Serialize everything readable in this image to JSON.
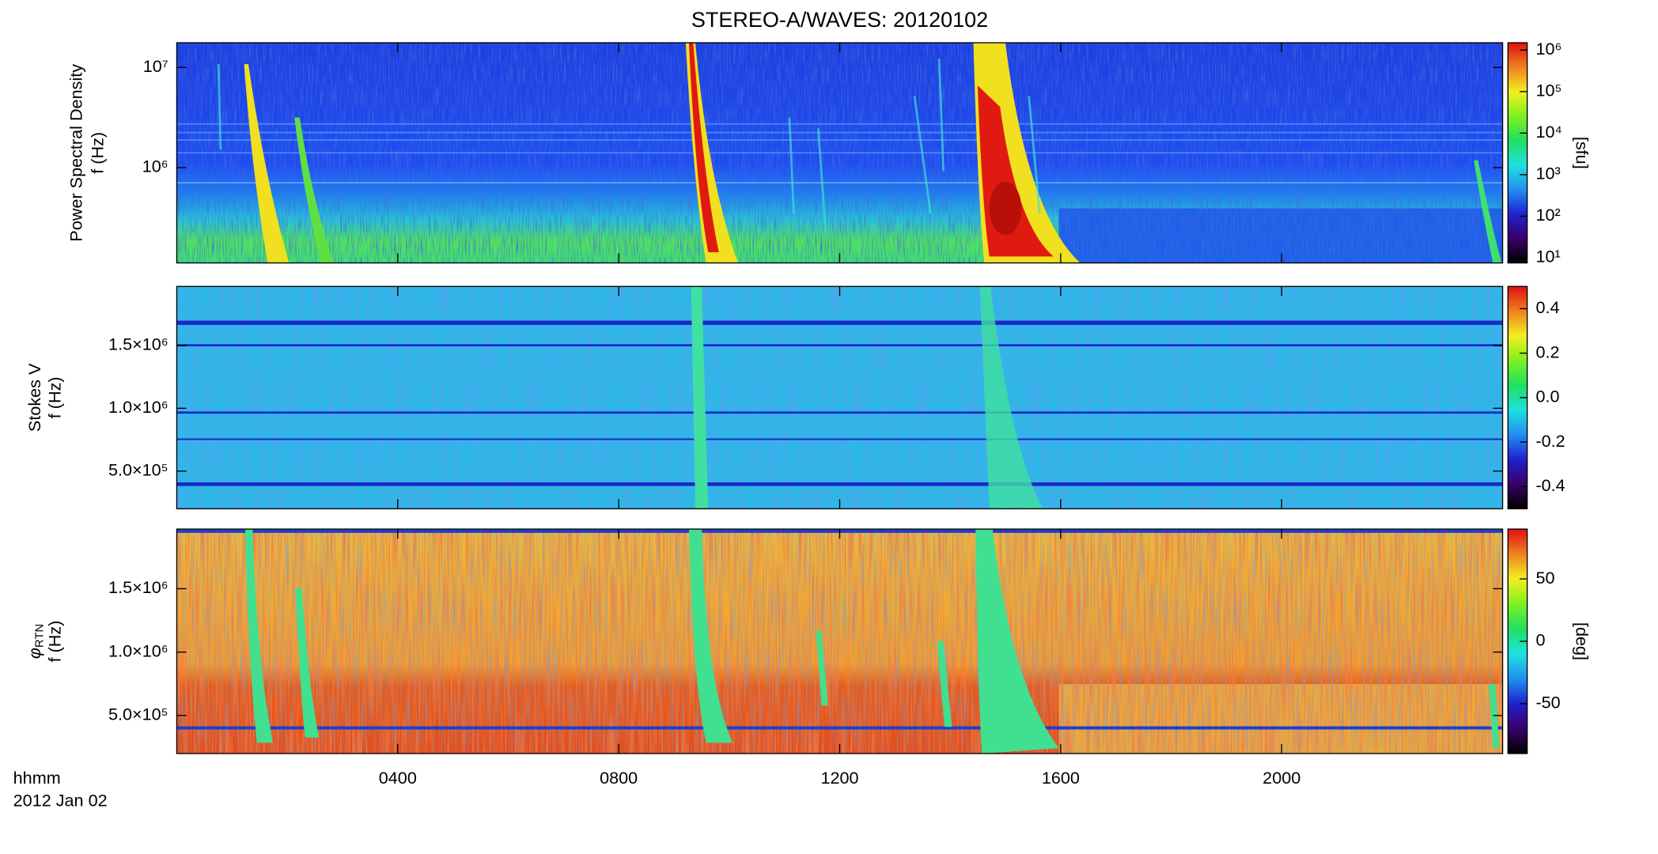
{
  "chart_data": [
    {
      "type": "heatmap",
      "title": "STEREO-A/WAVES: 20120102",
      "ylabel": "Power Spectral Density",
      "ylabel2": "f (Hz)",
      "log_y": true,
      "ylim": [
        112000,
        17600000
      ],
      "yticks": [
        {
          "value": 1000000,
          "label": "10⁶"
        },
        {
          "value": 10000000,
          "label": "10⁷"
        }
      ],
      "colorbar": {
        "label": "[sfu]",
        "log": true,
        "lim": [
          7.5,
          1500000
        ],
        "ticks": [
          {
            "value": 10,
            "label": "10¹"
          },
          {
            "value": 100,
            "label": "10²"
          },
          {
            "value": 1000,
            "label": "10³"
          },
          {
            "value": 10000,
            "label": "10⁴"
          },
          {
            "value": 100000,
            "label": "10⁵"
          },
          {
            "value": 1000000,
            "label": "10⁶"
          }
        ],
        "colormap": [
          "#000000",
          "#3a0068",
          "#2020d0",
          "#2090f0",
          "#20e0e0",
          "#20e060",
          "#80f020",
          "#f0f020",
          "#f08020",
          "#e01010"
        ]
      }
    },
    {
      "type": "heatmap",
      "ylabel": "Stokes V",
      "ylabel2": "f (Hz)",
      "ylim": [
        200000,
        1970000
      ],
      "yticks": [
        {
          "value": 500000,
          "label": "5.0×10⁵"
        },
        {
          "value": 1000000,
          "label": "1.0×10⁶"
        },
        {
          "value": 1500000,
          "label": "1.5×10⁶"
        }
      ],
      "colorbar": {
        "lim": [
          -0.5,
          0.5
        ],
        "ticks": [
          -0.4,
          -0.2,
          {
            "value": 0,
            "label": "0.0"
          },
          0.2,
          0.4
        ],
        "colormap": [
          "#000000",
          "#3a0068",
          "#2020d0",
          "#2090f0",
          "#20e0e0",
          "#20e060",
          "#80f020",
          "#f0f020",
          "#f08020",
          "#e01010"
        ]
      }
    },
    {
      "type": "heatmap",
      "ylabel": "φ",
      "ylabel_sub": "RTN",
      "ylabel2": "f (Hz)",
      "ylim": [
        200000,
        1970000
      ],
      "yticks": [
        {
          "value": 500000,
          "label": "5.0×10⁵"
        },
        {
          "value": 1000000,
          "label": "1.0×10⁶"
        },
        {
          "value": 1500000,
          "label": "1.5×10⁶"
        }
      ],
      "colorbar": {
        "label": "[deg]",
        "lim": [
          -90,
          90
        ],
        "ticks": [
          -50,
          0,
          50
        ],
        "colormap": [
          "#000000",
          "#3a0068",
          "#2020d0",
          "#2090f0",
          "#20e0e0",
          "#20e060",
          "#80f020",
          "#f0f020",
          "#f08020",
          "#e01010"
        ]
      },
      "xlim": [
        0,
        24
      ],
      "xticks": [
        {
          "value": 4,
          "label": "0400"
        },
        {
          "value": 8,
          "label": "0800"
        },
        {
          "value": 12,
          "label": "1200"
        },
        {
          "value": 16,
          "label": "1600"
        },
        {
          "value": 20,
          "label": "2000"
        }
      ],
      "xlabel": "hhmm",
      "xlabel2": "2012 Jan 02"
    }
  ]
}
